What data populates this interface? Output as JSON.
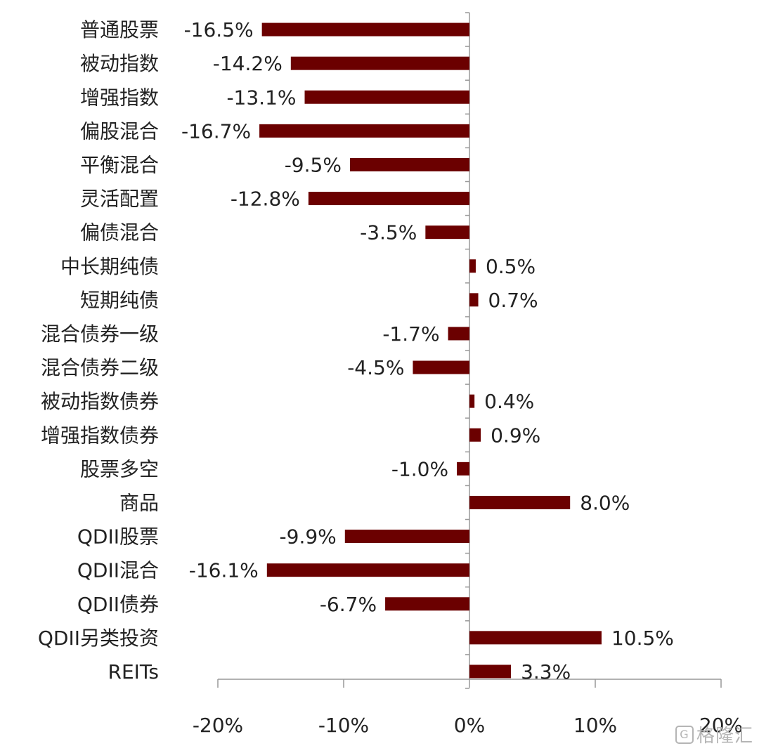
{
  "chart_data": {
    "type": "bar",
    "orientation": "horizontal",
    "categories": [
      "普通股票",
      "被动指数",
      "增强指数",
      "偏股混合",
      "平衡混合",
      "灵活配置",
      "偏债混合",
      "中长期纯债",
      "短期纯债",
      "混合债券一级",
      "混合债券二级",
      "被动指数债券",
      "增强指数债券",
      "股票多空",
      "商品",
      "QDII股票",
      "QDII混合",
      "QDII债券",
      "QDII另类投资",
      "REITs"
    ],
    "values": [
      -16.5,
      -14.2,
      -13.1,
      -16.7,
      -9.5,
      -12.8,
      -3.5,
      0.5,
      0.7,
      -1.7,
      -4.5,
      0.4,
      0.9,
      -1.0,
      8.0,
      -9.9,
      -16.1,
      -6.7,
      10.5,
      3.3
    ],
    "value_labels": [
      "-16.5%",
      "-14.2%",
      "-13.1%",
      "-16.7%",
      "-9.5%",
      "-12.8%",
      "-3.5%",
      "0.5%",
      "0.7%",
      "-1.7%",
      "-4.5%",
      "0.4%",
      "0.9%",
      "-1.0%",
      "8.0%",
      "-9.9%",
      "-16.1%",
      "-6.7%",
      "10.5%",
      "3.3%"
    ],
    "xlim": [
      -20,
      20
    ],
    "xticks": [
      -20,
      -10,
      0,
      10,
      20
    ],
    "xtick_labels": [
      "-20%",
      "-10%",
      "0%",
      "10%",
      "20%"
    ],
    "title": "",
    "xlabel": "",
    "ylabel": "",
    "grid": false,
    "legend": "none",
    "bar_color": "#6b0000",
    "axis_color": "#999999"
  },
  "watermark": {
    "logo_glyph": "G",
    "text": "格隆汇"
  }
}
